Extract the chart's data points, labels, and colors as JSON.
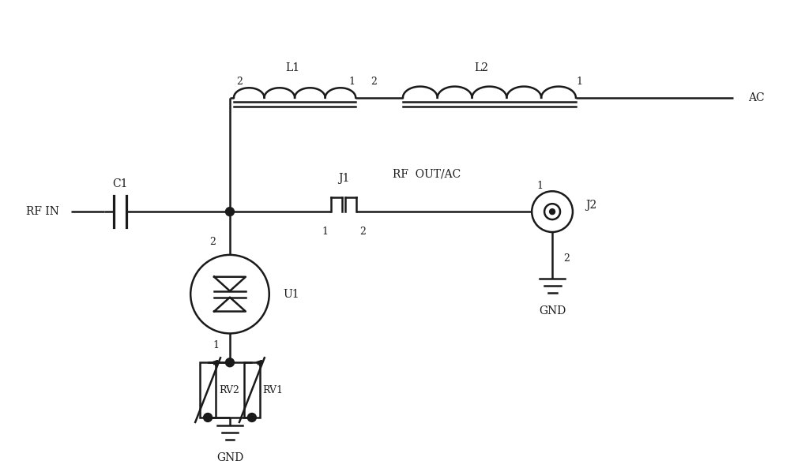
{
  "bg_color": "#ffffff",
  "line_color": "#1a1a1a",
  "lw": 1.8,
  "figsize": [
    10.0,
    5.98
  ],
  "dpi": 100,
  "xlim": [
    0,
    10
  ],
  "ylim": [
    0,
    5.98
  ]
}
